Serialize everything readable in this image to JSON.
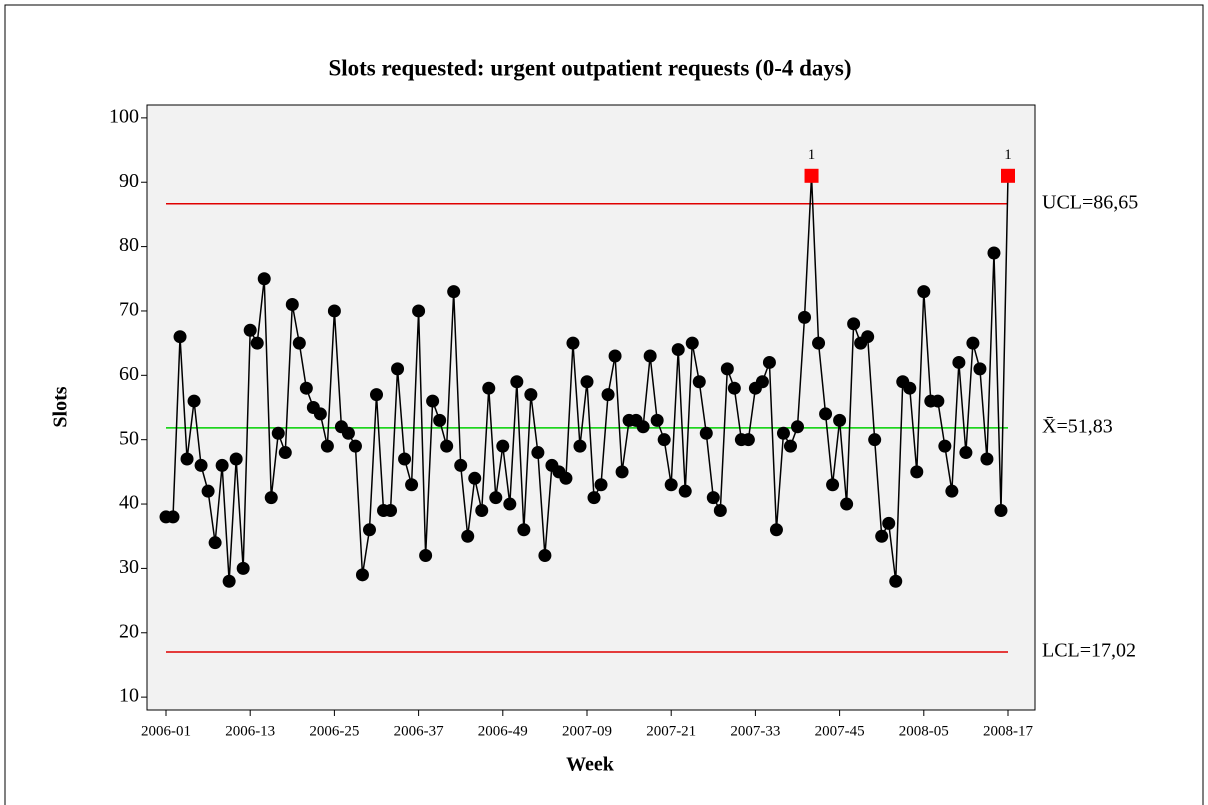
{
  "chart_data": {
    "type": "control",
    "title": "Slots requested: urgent outpatient requests (0-4 days)",
    "xlabel": "Week",
    "ylabel": "Slots",
    "categories": [
      "2006-01",
      null,
      null,
      null,
      null,
      null,
      null,
      null,
      null,
      null,
      null,
      null,
      "2006-13",
      null,
      null,
      null,
      null,
      null,
      null,
      null,
      null,
      null,
      null,
      null,
      "2006-25",
      null,
      null,
      null,
      null,
      null,
      null,
      null,
      null,
      null,
      null,
      null,
      "2006-37",
      null,
      null,
      null,
      null,
      null,
      null,
      null,
      null,
      null,
      null,
      null,
      "2006-49",
      null,
      null,
      null,
      null,
      null,
      null,
      null,
      null,
      null,
      null,
      null,
      "2007-09",
      null,
      null,
      null,
      null,
      null,
      null,
      null,
      null,
      null,
      null,
      null,
      "2007-21",
      null,
      null,
      null,
      null,
      null,
      null,
      null,
      null,
      null,
      null,
      null,
      "2007-33",
      null,
      null,
      null,
      null,
      null,
      null,
      null,
      null,
      null,
      null,
      null,
      "2007-45",
      null,
      null,
      null,
      null,
      null,
      null,
      null,
      null,
      null,
      null,
      null,
      "2008-05",
      null,
      null,
      null,
      null,
      null,
      null,
      null,
      null,
      null,
      null,
      null,
      "2008-17"
    ],
    "values": [
      38,
      38,
      66,
      47,
      56,
      46,
      42,
      34,
      46,
      28,
      47,
      30,
      67,
      65,
      75,
      41,
      51,
      48,
      71,
      65,
      58,
      55,
      54,
      49,
      70,
      52,
      51,
      49,
      29,
      36,
      57,
      39,
      39,
      61,
      47,
      43,
      70,
      32,
      56,
      53,
      49,
      73,
      46,
      35,
      44,
      39,
      58,
      41,
      49,
      40,
      59,
      36,
      57,
      48,
      32,
      46,
      45,
      44,
      65,
      49,
      59,
      41,
      43,
      57,
      63,
      45,
      53,
      53,
      52,
      63,
      53,
      50,
      43,
      64,
      42,
      65,
      59,
      51,
      41,
      39,
      61,
      58,
      50,
      50,
      58,
      59,
      62,
      36,
      51,
      49,
      52,
      69,
      91,
      65,
      54,
      43,
      53,
      40,
      68,
      65,
      66,
      50,
      35,
      37,
      28,
      59,
      58,
      45,
      73,
      56,
      56,
      49,
      42,
      62,
      48,
      65,
      61,
      47,
      79,
      39,
      91
    ],
    "flags": [
      null,
      null,
      null,
      null,
      null,
      null,
      null,
      null,
      null,
      null,
      null,
      null,
      null,
      null,
      null,
      null,
      null,
      null,
      null,
      null,
      null,
      null,
      null,
      null,
      null,
      null,
      null,
      null,
      null,
      null,
      null,
      null,
      null,
      null,
      null,
      null,
      null,
      null,
      null,
      null,
      null,
      null,
      null,
      null,
      null,
      null,
      null,
      null,
      null,
      null,
      null,
      null,
      null,
      null,
      null,
      null,
      null,
      null,
      null,
      null,
      null,
      null,
      null,
      null,
      null,
      null,
      null,
      null,
      null,
      null,
      null,
      null,
      null,
      null,
      null,
      null,
      null,
      null,
      null,
      null,
      null,
      null,
      null,
      null,
      null,
      null,
      null,
      null,
      null,
      null,
      null,
      null,
      "1",
      null,
      null,
      null,
      null,
      null,
      null,
      null,
      null,
      null,
      null,
      null,
      null,
      null,
      null,
      null,
      null,
      null,
      null,
      null,
      null,
      null,
      null,
      null,
      null,
      null,
      null,
      null,
      "1"
    ],
    "color": "#000000",
    "flag_color": "#ff0000",
    "reference_lines": [
      {
        "label": "UCL=86,65",
        "value": 86.65,
        "color": "#e00000"
      },
      {
        "label": "X̄=51,83",
        "value": 51.83,
        "color": "#00d000"
      },
      {
        "label": "LCL=17,02",
        "value": 17.02,
        "color": "#e00000"
      }
    ],
    "ylim": [
      8,
      102
    ],
    "yticks": [
      10,
      20,
      30,
      40,
      50,
      60,
      70,
      80,
      90,
      100
    ]
  }
}
